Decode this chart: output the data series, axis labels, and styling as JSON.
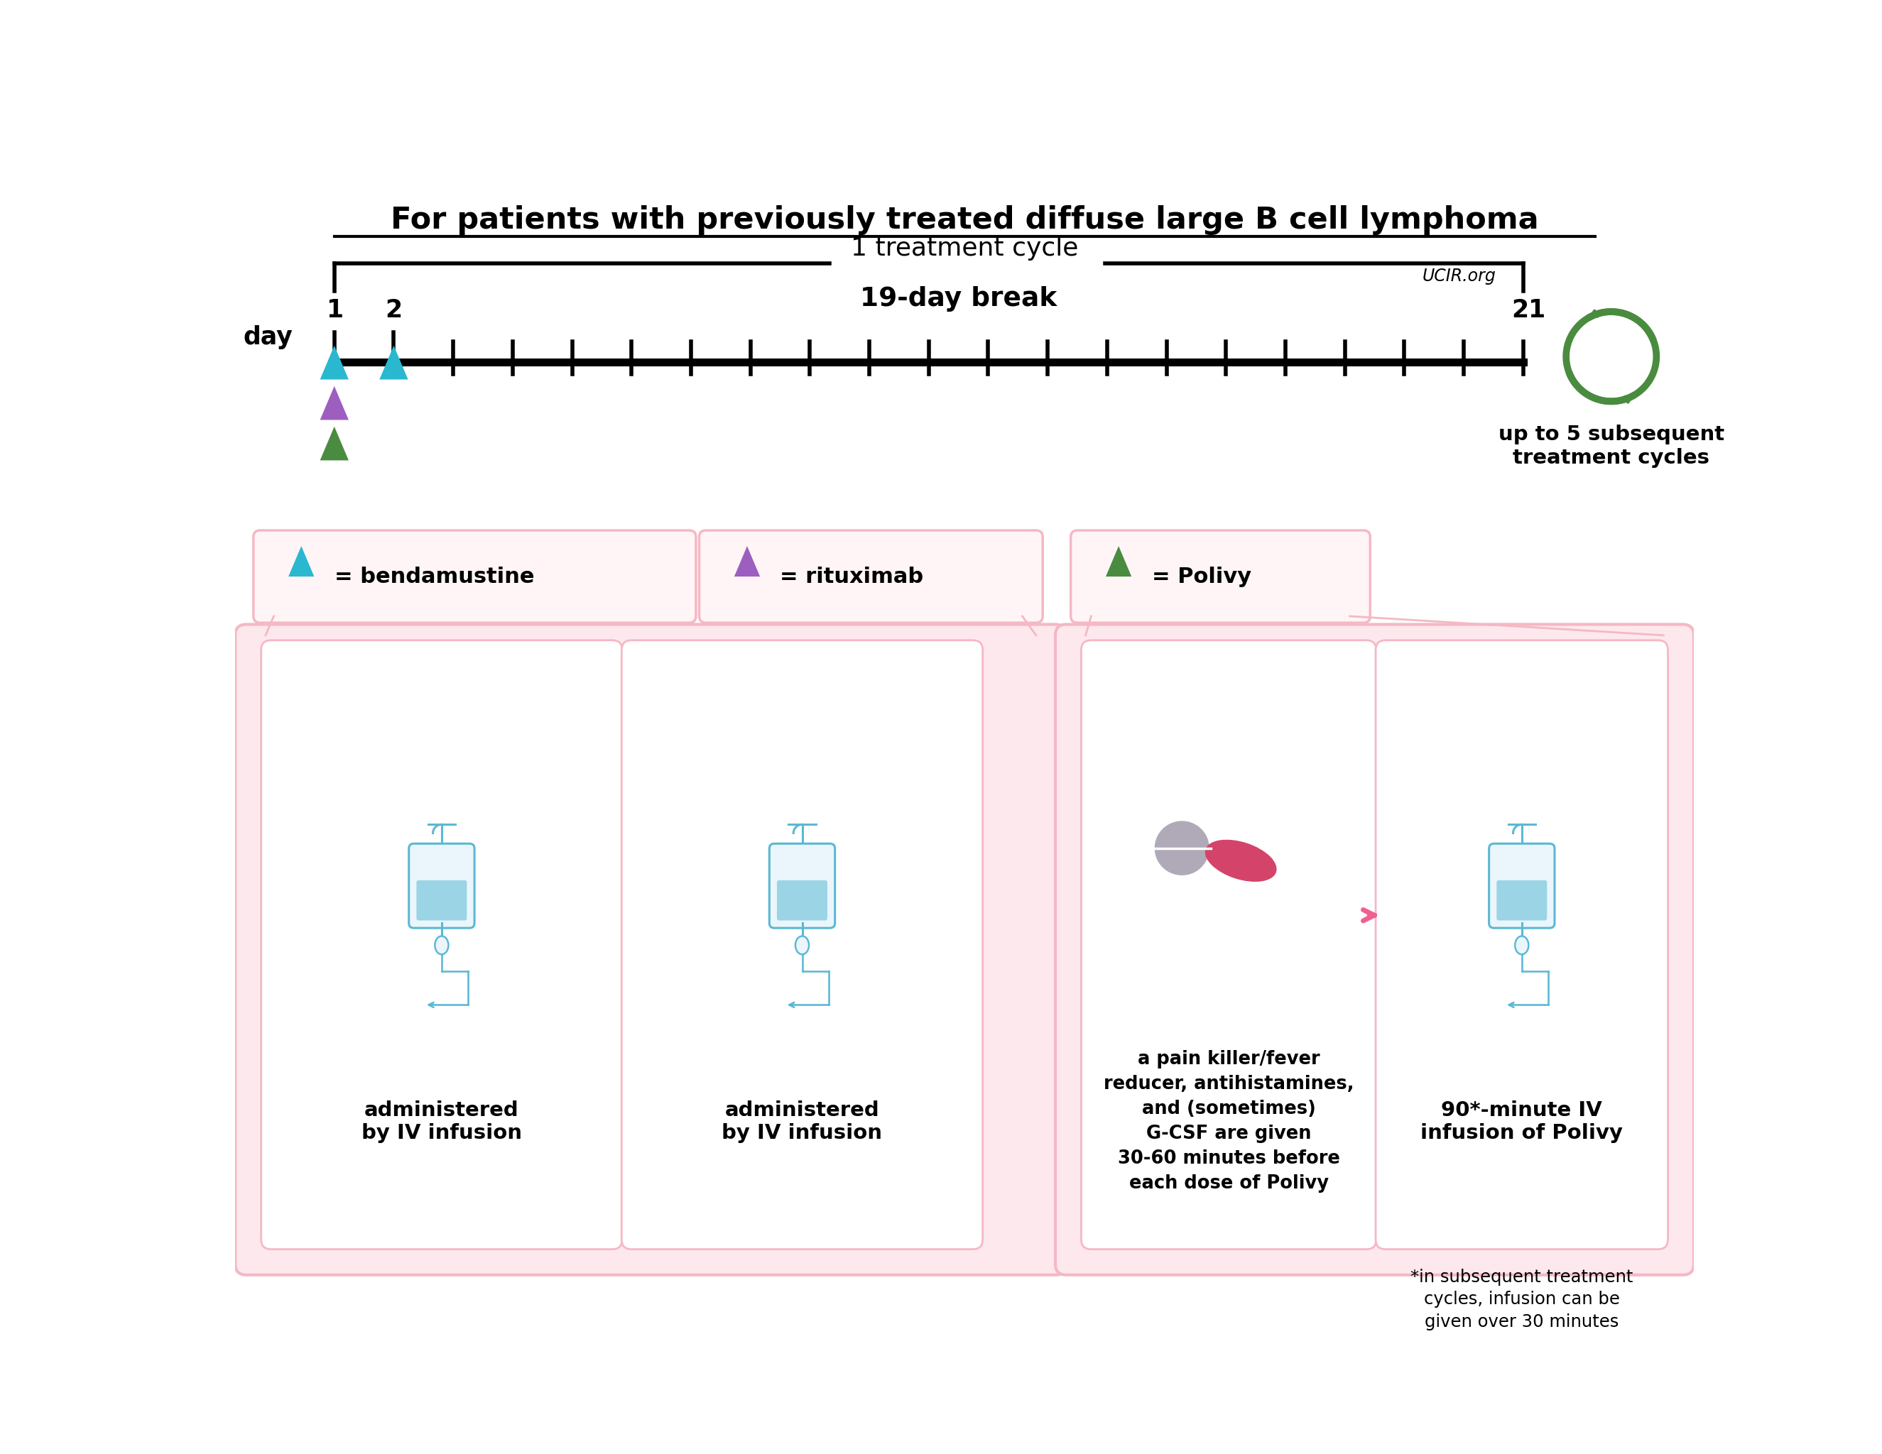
{
  "title": "For patients with previously treated diffuse large B cell lymphoma",
  "treatment_cycle_label": "1 treatment cycle",
  "ucir_label": "UCIR.org",
  "break_label": "19-day break",
  "cycle_label": "up to 5 subsequent\ntreatment cycles",
  "legend_cyan": "= bendamustine",
  "legend_purple": "= rituximab",
  "legend_green": "= Polivy",
  "box1_label": "administered\nby IV infusion",
  "box2_label": "administered\nby IV infusion",
  "box3_label": "a pain killer/fever\nreducer, antihistamines,\nand (sometimes)\nG-CSF are given\n30-60 minutes before\neach dose of Polivy",
  "box4_label": "90*-minute IV\ninfusion of Polivy",
  "footnote": "*in subsequent treatment\ncycles, infusion can be\ngiven over 30 minutes",
  "bg_color": "#ffffff",
  "pink": "#f5b8c4",
  "cyan_color": "#29b8d0",
  "purple_color": "#9c5fbf",
  "green_color": "#4a8c3f",
  "iv_bag_color": "#5bb8d4",
  "pill_gray_color": "#b0aab8",
  "pill_pink_color": "#d4446a",
  "arrow_pink_color": "#f06090",
  "recycle_green": "#4a8c3f",
  "text_color": "#000000"
}
